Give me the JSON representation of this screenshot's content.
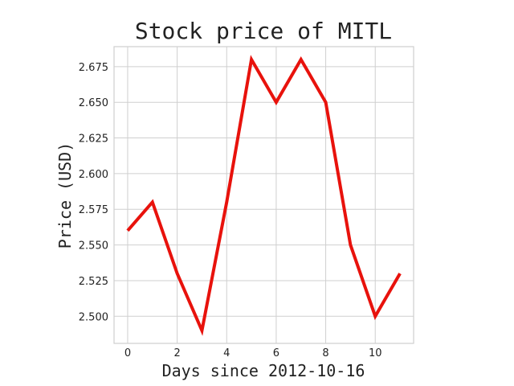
{
  "chart_data": {
    "type": "line",
    "title": "Stock price of MITL",
    "xlabel": "Days since 2012-10-16",
    "ylabel": "Price (USD)",
    "x": [
      0,
      1,
      2,
      3,
      4,
      5,
      6,
      7,
      8,
      9,
      10,
      11
    ],
    "series": [
      {
        "values": [
          2.56,
          2.58,
          2.53,
          2.49,
          2.58,
          2.68,
          2.65,
          2.68,
          2.65,
          2.55,
          2.5,
          2.53
        ],
        "color": "#e8120c"
      }
    ],
    "xlim": [
      -0.55,
      11.55
    ],
    "ylim": [
      2.481,
      2.689
    ],
    "xticks": [
      0,
      2,
      4,
      6,
      8,
      10
    ],
    "xtick_labels": [
      "0",
      "2",
      "4",
      "6",
      "8",
      "10"
    ],
    "yticks": [
      2.5,
      2.525,
      2.55,
      2.575,
      2.6,
      2.625,
      2.65,
      2.675
    ],
    "ytick_labels": [
      "2.500",
      "2.525",
      "2.550",
      "2.575",
      "2.600",
      "2.625",
      "2.650",
      "2.675"
    ],
    "grid": true,
    "legend": "none"
  }
}
